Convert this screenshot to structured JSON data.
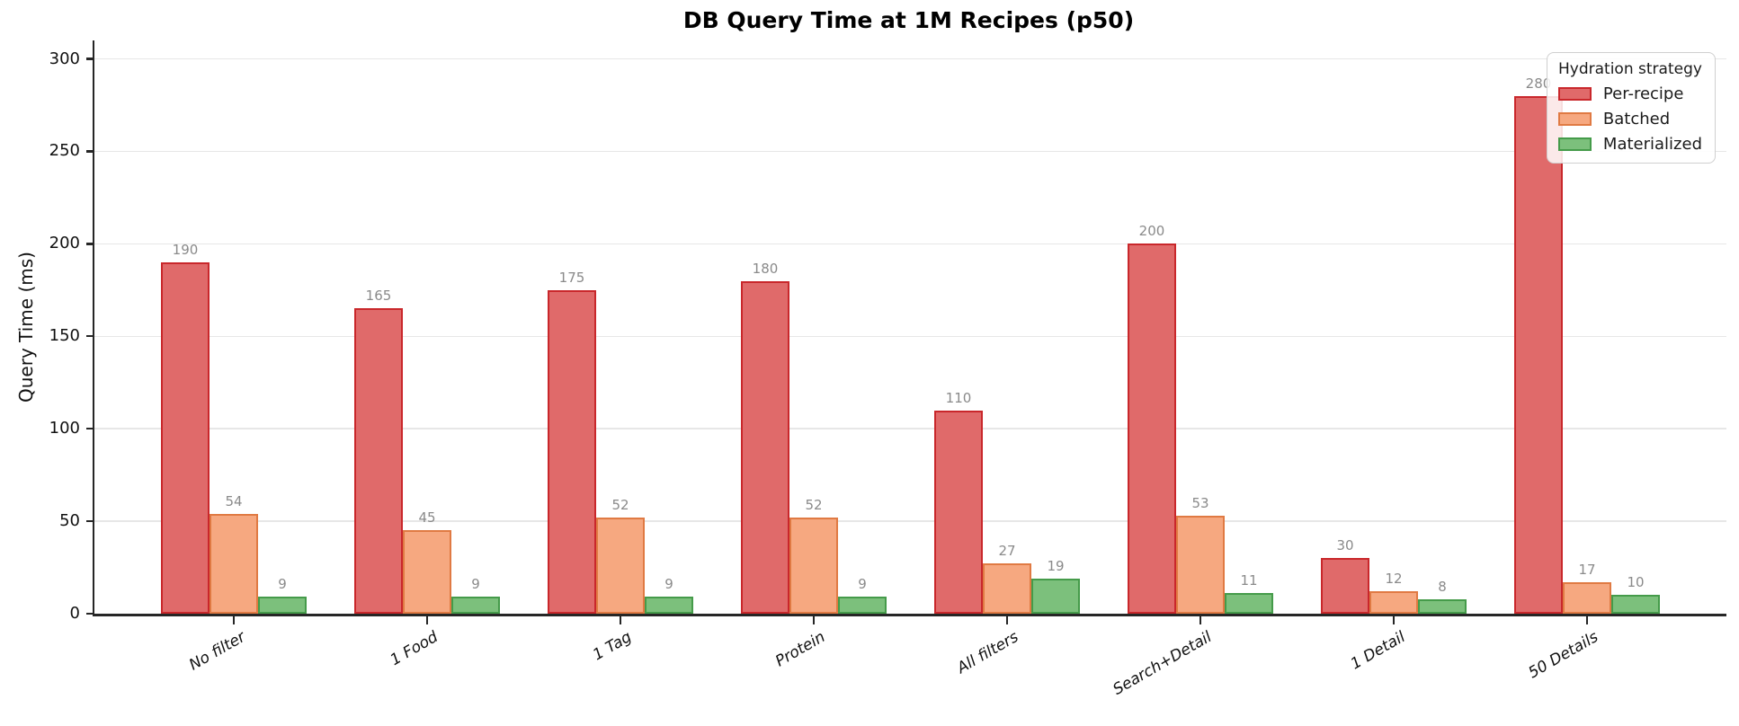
{
  "chart_data": {
    "type": "bar",
    "title": "DB Query Time at 1M Recipes (p50)",
    "xlabel": "",
    "ylabel": "Query Time (ms)",
    "categories": [
      "No filter",
      "1 Food",
      "1 Tag",
      "Protein",
      "All filters",
      "Search+Detail",
      "1 Detail",
      "50 Details"
    ],
    "series": [
      {
        "name": "Per-recipe",
        "values": [
          190,
          165,
          175,
          180,
          110,
          200,
          30,
          280
        ],
        "fill": "#e06a6a",
        "edge": "#c9272b"
      },
      {
        "name": "Batched",
        "values": [
          54,
          45,
          52,
          52,
          27,
          53,
          12,
          17
        ],
        "fill": "#f6a880",
        "edge": "#e07a43"
      },
      {
        "name": "Materialized",
        "values": [
          9,
          9,
          9,
          9,
          19,
          11,
          8,
          10
        ],
        "fill": "#7cc07c",
        "edge": "#459b4a"
      }
    ],
    "legend_title": "Hydration strategy",
    "legend_position": "upper right",
    "yticks": [
      0,
      50,
      100,
      150,
      200,
      250,
      300
    ],
    "ylim": [
      0,
      310
    ],
    "grid": "horizontal",
    "grid_color": "#e7e7e7",
    "bar_label_color": "#8a8a8a"
  }
}
